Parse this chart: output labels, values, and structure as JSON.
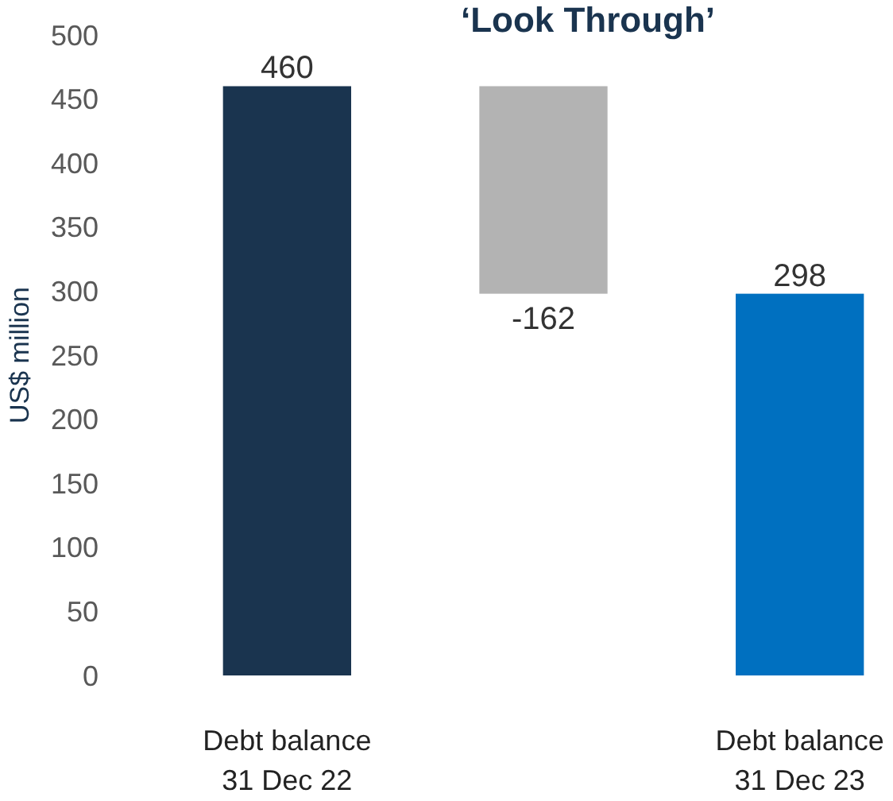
{
  "chart_data": {
    "type": "bar",
    "title": "‘Look Through’",
    "ylabel": "US$ million",
    "categories": [
      "Debt balance\n31 Dec 22",
      null,
      "Debt balance\n31 Dec 23"
    ],
    "values": [
      460,
      -162,
      298
    ],
    "base": [
      0,
      460,
      0
    ],
    "colors": [
      "#1a344f",
      "#b3b3b3",
      "#0070c0"
    ],
    "ylim": [
      0,
      500
    ],
    "yticks": [
      0,
      50,
      100,
      150,
      200,
      250,
      300,
      350,
      400,
      450,
      500
    ],
    "data_labels": true,
    "grid": false
  }
}
